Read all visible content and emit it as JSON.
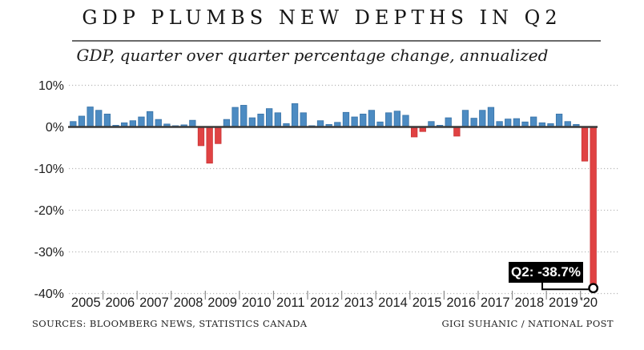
{
  "header": {
    "title": "GDP PLUMBS NEW DEPTHS IN Q2",
    "subtitle": "GDP, quarter over quarter percentage change, annualized"
  },
  "footer": {
    "sources": "SOURCES: BLOOMBERG NEWS, STATISTICS CANADA",
    "credit": "GIGI SUHANIC / NATIONAL POST"
  },
  "colors": {
    "positive_bar": "#4c8bc2",
    "positive_bar_edge": "#3a74a8",
    "negative_bar": "#e04243",
    "negative_bar_edge": "#c93536",
    "axis_line": "#3a3a3a",
    "gridline": "#b8b8b8",
    "tick": "#8a8a8a",
    "label_text": "#1d1d1d",
    "annotation_bg": "#000000",
    "annotation_text": "#ffffff"
  },
  "chart_data": {
    "type": "bar",
    "title": "GDP PLUMBS NEW DEPTHS IN Q2",
    "subtitle": "GDP, quarter over quarter percentage change, annualized",
    "ylim": [
      -40,
      10
    ],
    "grid": "dotted horizontal",
    "y_ticks": [
      {
        "value": 10,
        "label": "10%"
      },
      {
        "value": 0,
        "label": "0%"
      },
      {
        "value": -10,
        "label": "-10%"
      },
      {
        "value": -20,
        "label": "-20%"
      },
      {
        "value": -30,
        "label": "-30%"
      },
      {
        "value": -40,
        "label": "-40%"
      }
    ],
    "x_year_labels": [
      "2005",
      "2006",
      "2007",
      "2008",
      "2009",
      "2010",
      "2011",
      "2012",
      "2013",
      "2014",
      "2015",
      "2016",
      "2017",
      "2018",
      "2019",
      "'20"
    ],
    "quarters_per_year": 4,
    "last_year_quarters": 2,
    "start_quarter": "2005 Q1",
    "end_quarter": "2020 Q2",
    "values": [
      1.3,
      2.6,
      4.8,
      4.0,
      3.1,
      0.4,
      1.0,
      1.5,
      2.4,
      3.7,
      1.8,
      0.7,
      0.3,
      0.5,
      1.6,
      -4.5,
      -8.7,
      -4.0,
      1.8,
      4.7,
      5.2,
      2.2,
      3.1,
      4.4,
      3.4,
      0.8,
      5.6,
      3.4,
      0.3,
      1.5,
      0.6,
      1.1,
      3.5,
      2.4,
      3.1,
      4.0,
      1.2,
      3.4,
      3.8,
      2.8,
      -2.4,
      -1.1,
      1.3,
      0.4,
      2.2,
      -2.2,
      4.0,
      2.1,
      4.0,
      4.7,
      1.3,
      1.9,
      2.0,
      1.2,
      2.4,
      1.0,
      0.8,
      3.1,
      1.3,
      0.6,
      -8.2,
      -38.7
    ],
    "annotation": {
      "label": "Q2: -38.7%",
      "target_quarter": "2020 Q2",
      "target_value": -38.7
    }
  }
}
